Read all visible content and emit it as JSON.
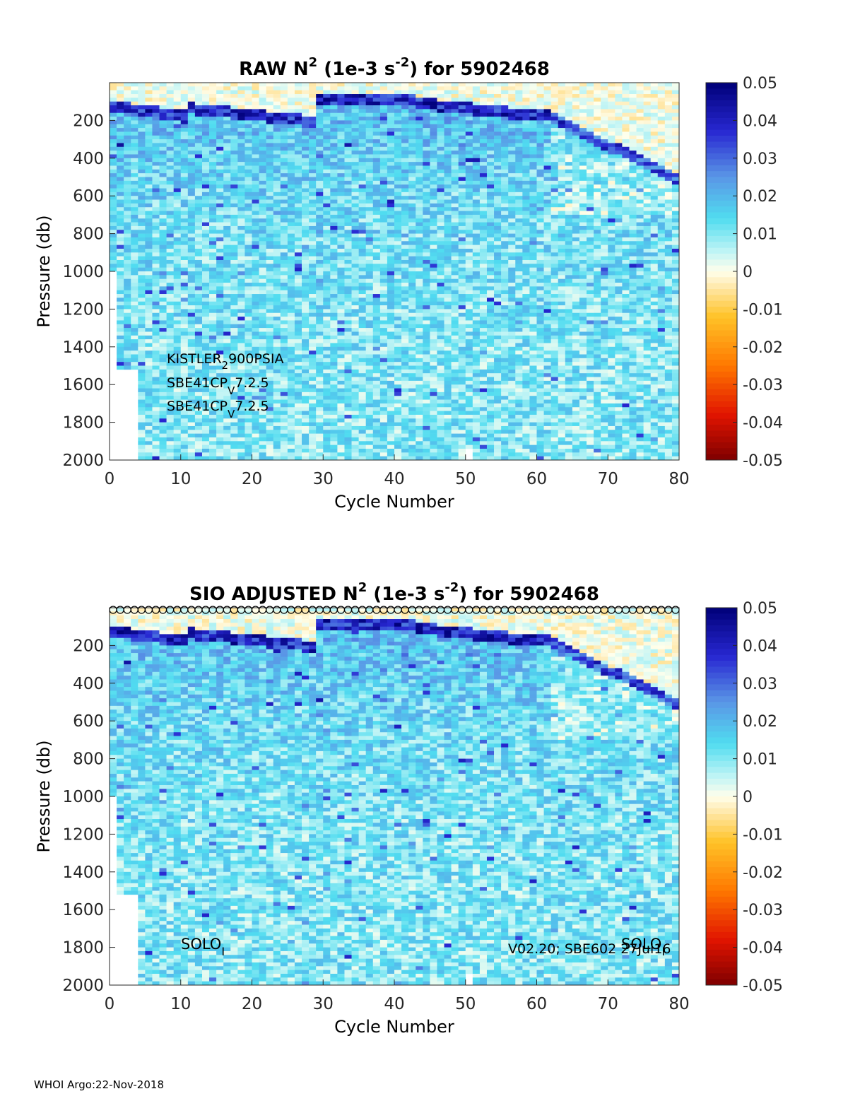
{
  "footer": "WHOI Argo:22-Nov-2018",
  "colorbar": {
    "ticks": [
      "0.05",
      "0.04",
      "0.03",
      "0.02",
      "0.01",
      "0",
      "-0.01",
      "-0.02",
      "-0.03",
      "-0.04",
      "-0.05"
    ],
    "range": [
      -0.05,
      0.05
    ]
  },
  "chart_data": [
    {
      "type": "heatmap",
      "title_main": "RAW N",
      "title_sup1": "2",
      "title_mid": " (1e-3 s",
      "title_sup2": "-2",
      "title_end": ") for 5902468",
      "xlabel": "Cycle Number",
      "ylabel": "Pressure (db)",
      "xlim": [
        0,
        80
      ],
      "ylim": [
        2000,
        0
      ],
      "xticks": [
        "0",
        "10",
        "20",
        "30",
        "40",
        "50",
        "60",
        "70",
        "80"
      ],
      "yticks": [
        "200",
        "400",
        "600",
        "800",
        "1000",
        "1200",
        "1400",
        "1600",
        "1800",
        "2000"
      ],
      "annotations": [
        {
          "base": "KISTLER",
          "sub": "2",
          "rest": "900PSIA"
        },
        {
          "base": "SBE41CP",
          "sub": "V",
          "rest": "7.2.5"
        },
        {
          "base": "SBE41CP",
          "sub": "V",
          "rest": "7.2.5"
        }
      ],
      "surface_markers": false
    },
    {
      "type": "heatmap",
      "title_main": "SIO  ADJUSTED N",
      "title_sup1": "2",
      "title_mid": " (1e-3 s",
      "title_sup2": "-2",
      "title_end": ") for 5902468",
      "xlabel": "Cycle Number",
      "ylabel": "Pressure (db)",
      "xlim": [
        0,
        80
      ],
      "ylim": [
        2000,
        0
      ],
      "xticks": [
        "0",
        "10",
        "20",
        "30",
        "40",
        "50",
        "60",
        "70",
        "80"
      ],
      "yticks": [
        "200",
        "400",
        "600",
        "800",
        "1000",
        "1200",
        "1400",
        "1600",
        "1800",
        "2000"
      ],
      "annotations": [
        {
          "base": "SOLO",
          "sub": "I",
          "rest": ""
        },
        {
          "base": "V02.20; SBE602 27Jul16",
          "sub": "",
          "rest": ""
        },
        {
          "base": "SOLO",
          "sub": "I",
          "rest": ""
        }
      ],
      "surface_markers": true
    }
  ]
}
